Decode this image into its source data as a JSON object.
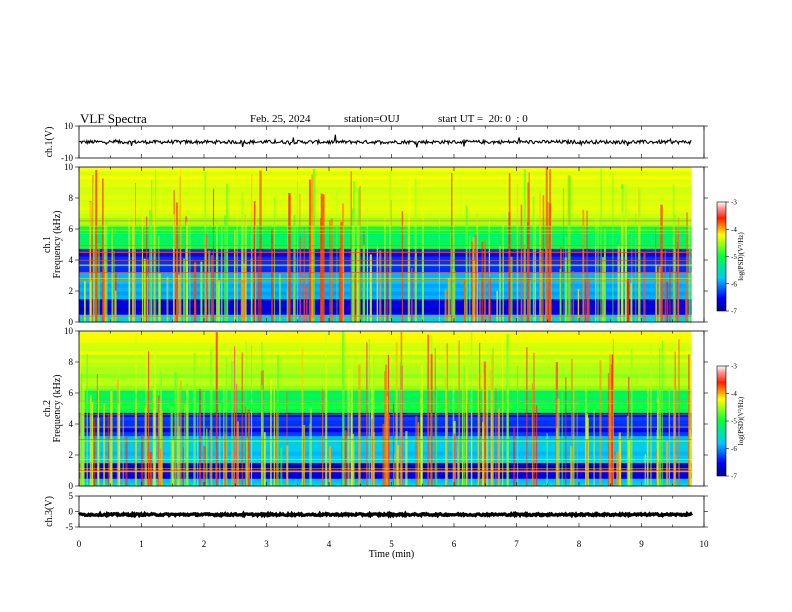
{
  "header": {
    "title": "VLF Spectra",
    "date": "Feb. 25, 2024",
    "station": "station=OUJ",
    "start": "start UT =  20: 0  : 0"
  },
  "chart_data": [
    {
      "type": "line",
      "name": "ch1-waveform",
      "ylabel": "ch.1(V)",
      "ylim": [
        -10,
        10
      ],
      "yticks": [
        "10",
        "-10"
      ],
      "xlim": [
        0,
        10
      ],
      "data_end_min": 9.8,
      "baseline": 0
    },
    {
      "type": "heatmap",
      "name": "ch1-spectrogram",
      "ylabel": "ch.1\nFrequency (kHz)",
      "ylabel_lines": [
        "ch.1",
        "Frequency (kHz)"
      ],
      "ylim": [
        0,
        10
      ],
      "yticks": [
        "0",
        "2",
        "4",
        "6",
        "8",
        "10"
      ],
      "xlim": [
        0,
        10
      ],
      "data_end_min": 9.8,
      "colorbar": {
        "label": "log(PSD)(V²/Hz)",
        "range": [
          -7,
          -3
        ],
        "ticks": [
          "-3",
          "-4",
          "-5",
          "-6",
          "-7"
        ]
      }
    },
    {
      "type": "heatmap",
      "name": "ch2-spectrogram",
      "ylabel": "ch.2\nFrequency (kHz)",
      "ylabel_lines": [
        "ch.2",
        "Frequency (kHz)"
      ],
      "ylim": [
        0,
        10
      ],
      "yticks": [
        "0",
        "2",
        "4",
        "6",
        "8",
        "10"
      ],
      "xlim": [
        0,
        10
      ],
      "data_end_min": 9.8,
      "colorbar": {
        "label": "log(PSD)(V²/Hz)",
        "range": [
          -7,
          -3
        ],
        "ticks": [
          "-3",
          "-4",
          "-5",
          "-6",
          "-7"
        ]
      }
    },
    {
      "type": "line",
      "name": "ch3-waveform",
      "ylabel": "ch.3(V)",
      "ylim": [
        -5,
        5
      ],
      "yticks": [
        "5",
        "0",
        "-5"
      ],
      "xlim": [
        0,
        10
      ],
      "data_end_min": 9.8,
      "baseline": -1
    }
  ],
  "xaxis": {
    "label": "Time (min)",
    "ticks": [
      "0",
      "1",
      "2",
      "3",
      "4",
      "5",
      "6",
      "7",
      "8",
      "9",
      "10"
    ]
  }
}
